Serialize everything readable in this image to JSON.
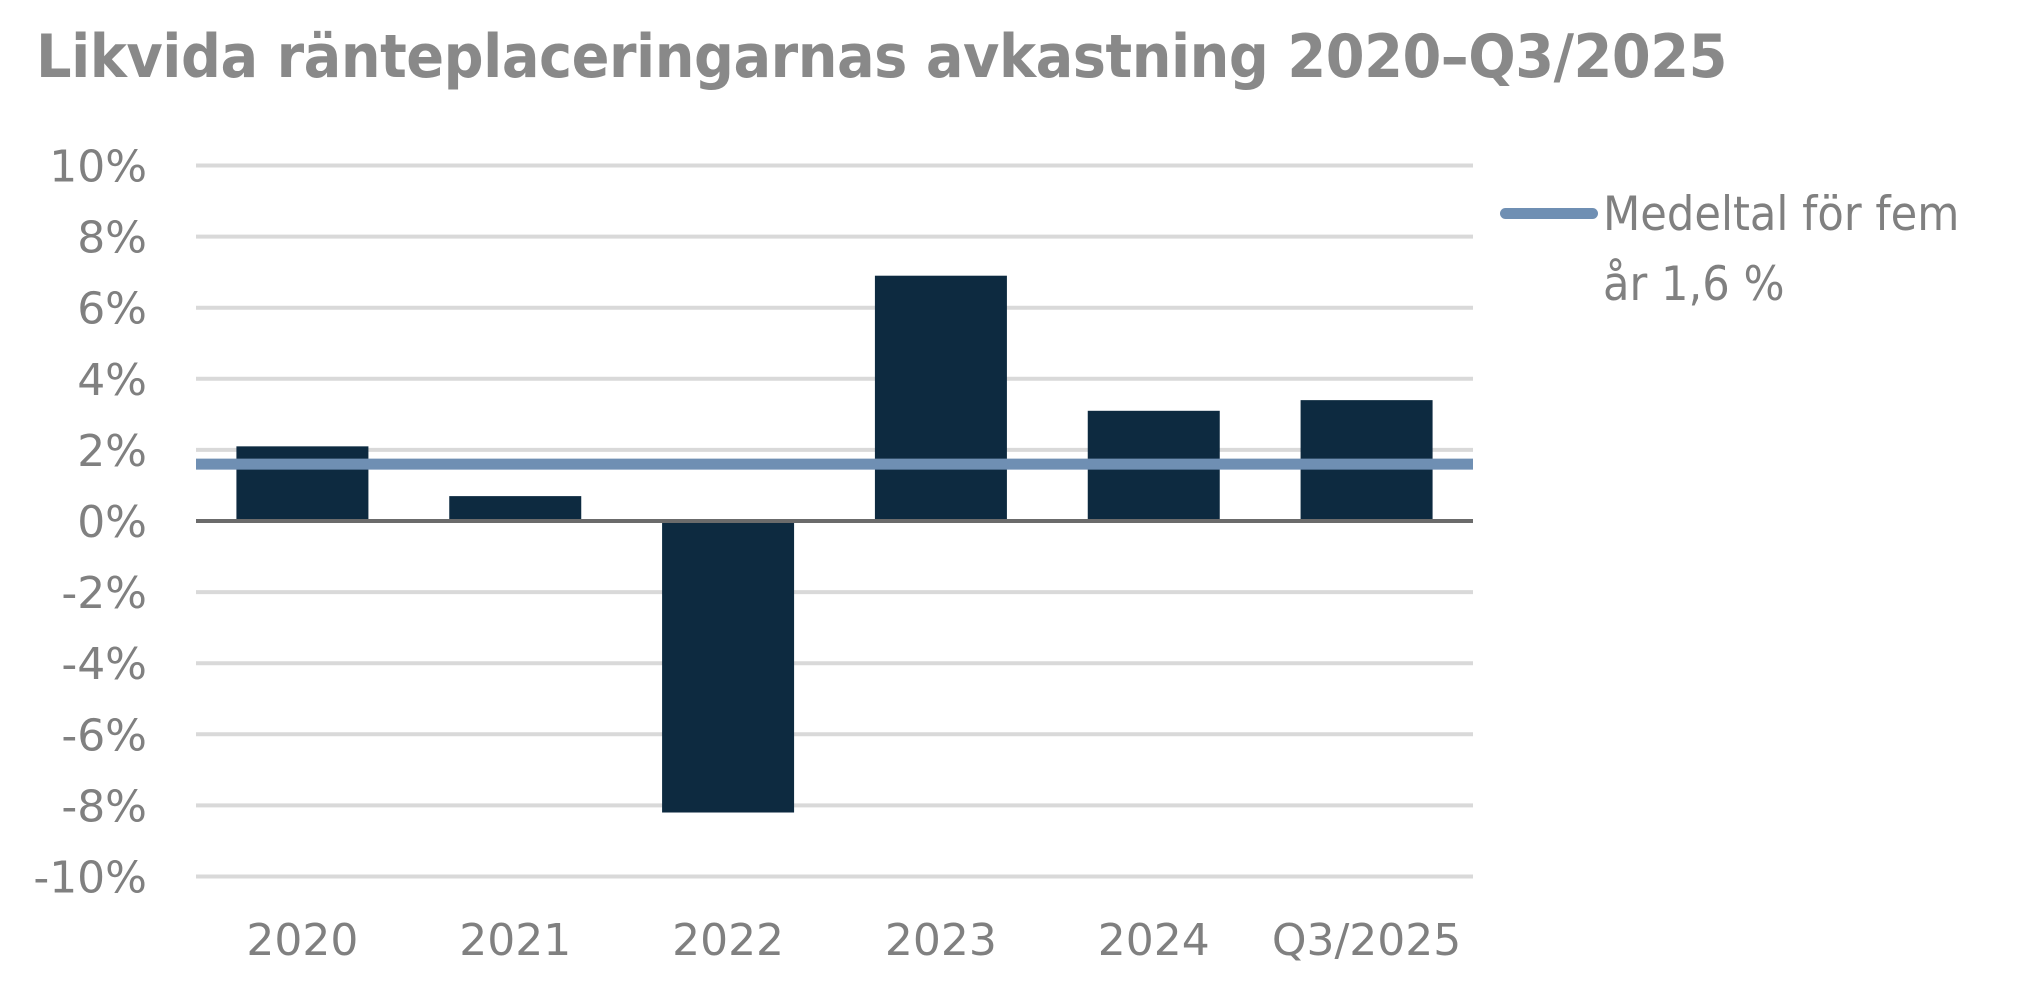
{
  "title": "Likvida ränteplaceringarnas avkastning 2020–Q3/2025",
  "colors": {
    "bar": "#0d2a40",
    "mean_line": "#6f8fb3",
    "gridline": "#d9d9d9",
    "zero_axis": "#6b6b6b",
    "text": "#808080",
    "title": "#898989"
  },
  "legend": {
    "items": [
      {
        "label": "Medeltal för fem år 1,6 %",
        "color": "#6f8fb3",
        "type": "line"
      }
    ]
  },
  "chart_data": {
    "type": "bar",
    "title": "Likvida ränteplaceringarnas avkastning 2020–Q3/2025",
    "xlabel": "",
    "ylabel": "",
    "categories": [
      "2020",
      "2021",
      "2022",
      "2023",
      "2024",
      "Q3/2025"
    ],
    "series": [
      {
        "name": "Avkastning",
        "type": "bar",
        "values": [
          2.1,
          0.7,
          -8.2,
          6.9,
          3.1,
          3.4
        ]
      },
      {
        "name": "Medeltal för fem år 1,6 %",
        "type": "line",
        "values": [
          1.6,
          1.6,
          1.6,
          1.6,
          1.6,
          1.6
        ]
      }
    ],
    "ylim": [
      -10,
      10
    ],
    "yticks": [
      10,
      8,
      6,
      4,
      2,
      0,
      -2,
      -4,
      -6,
      -8,
      -10
    ],
    "ytick_labels": [
      "10%",
      "8%",
      "6%",
      "4%",
      "2%",
      "0%",
      "-2%",
      "-4%",
      "-6%",
      "-8%",
      "-10%"
    ],
    "grid": true,
    "legend_position": "right"
  }
}
